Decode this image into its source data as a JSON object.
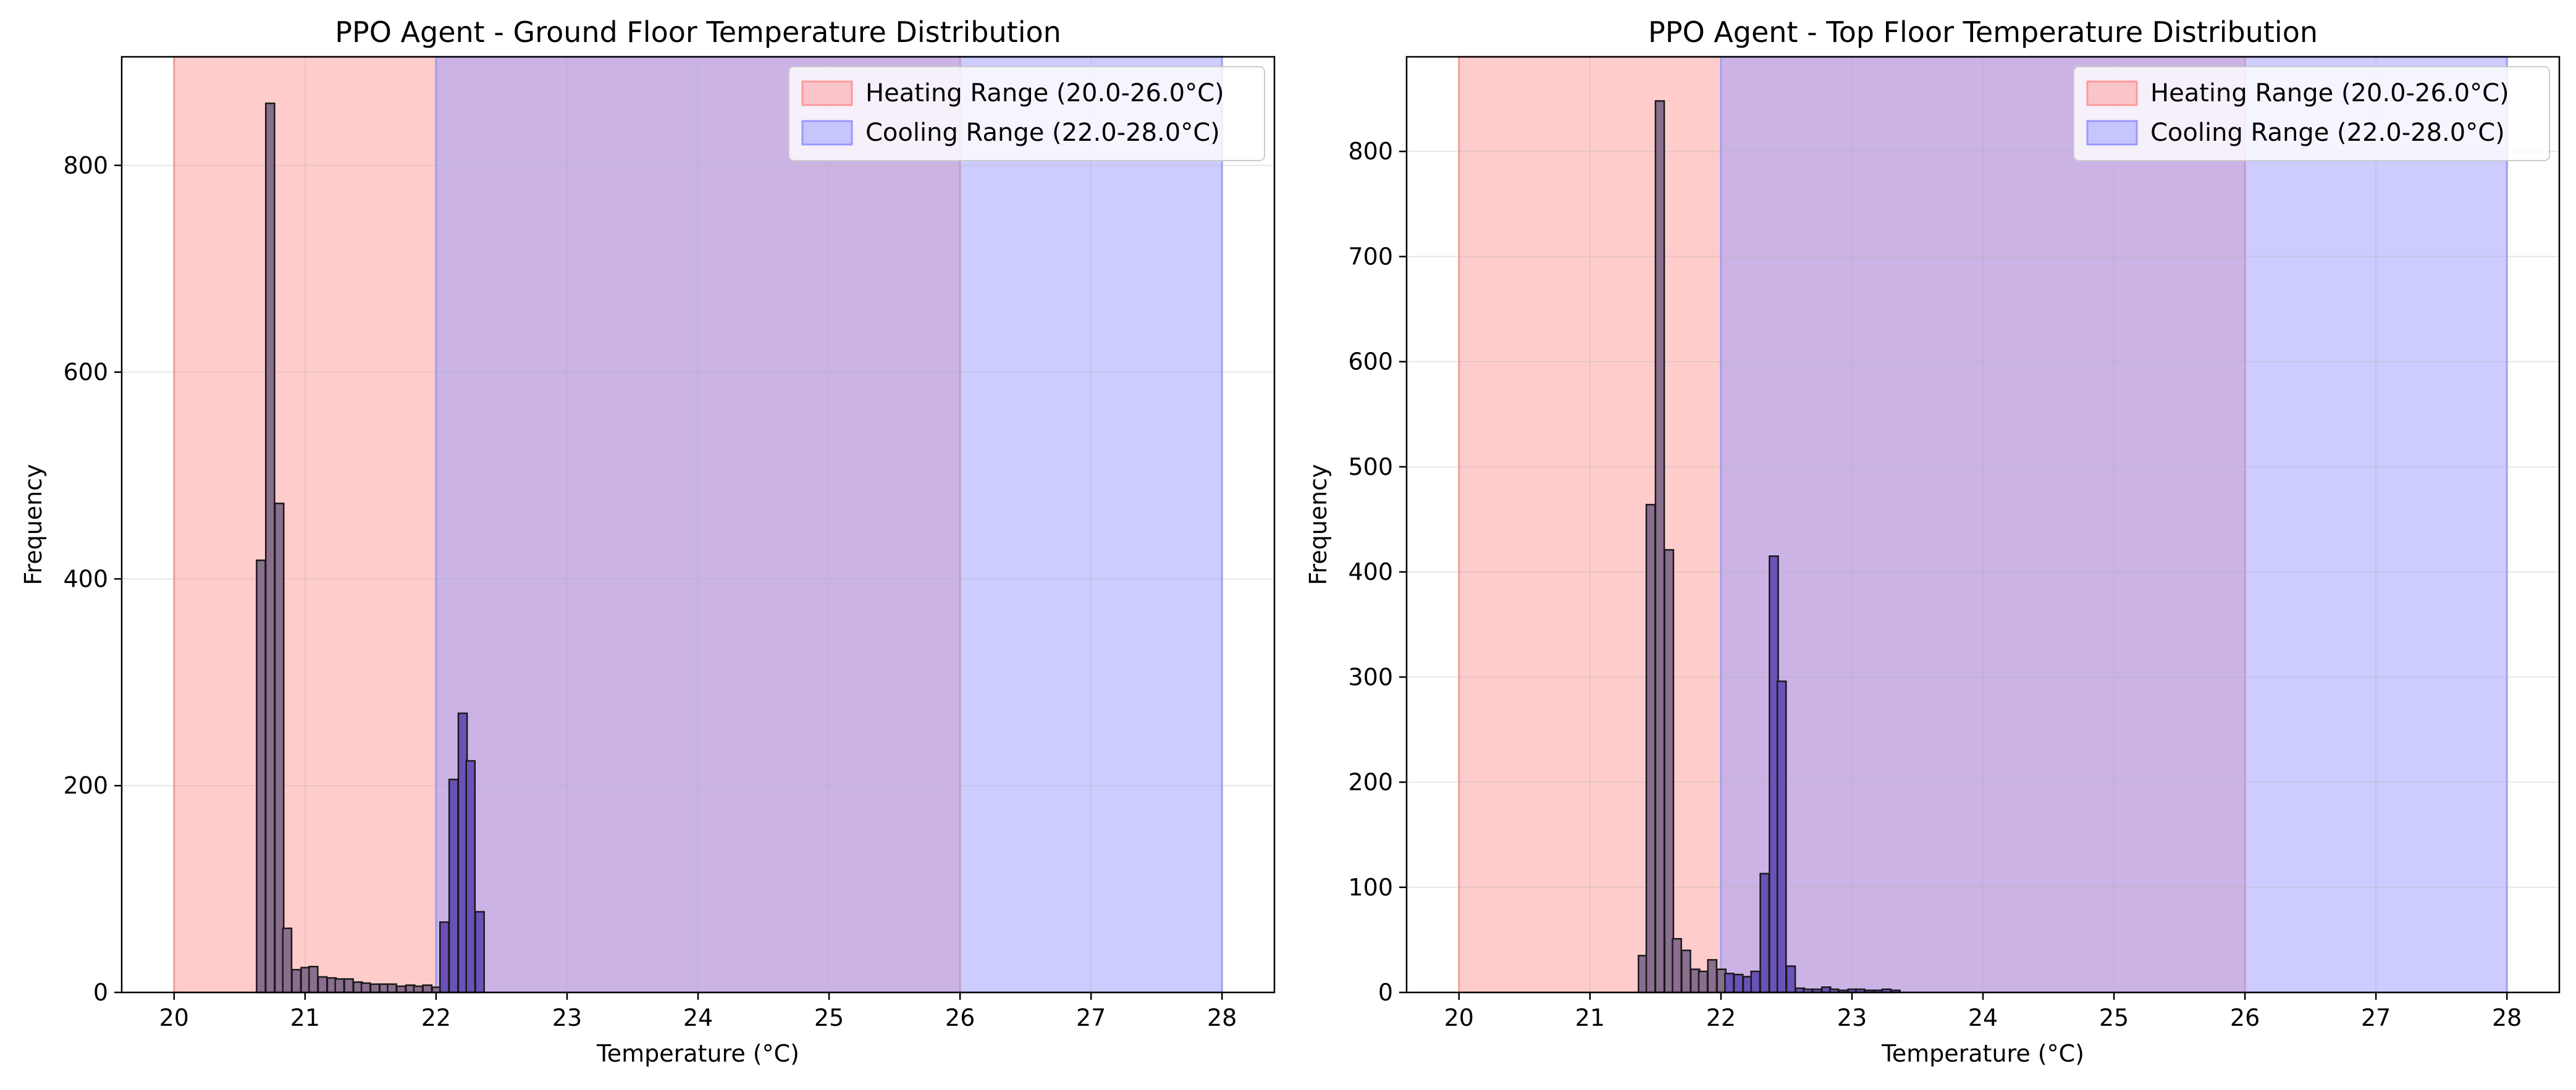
{
  "chart_data": [
    {
      "type": "histogram",
      "title": "PPO Agent - Ground Floor Temperature Distribution",
      "xlabel": "Temperature (°C)",
      "ylabel": "Frequency",
      "xlim": [
        19.6,
        28.4
      ],
      "ylim": [
        0,
        905
      ],
      "xticks": [
        20,
        21,
        22,
        23,
        24,
        25,
        26,
        27,
        28
      ],
      "yticks": [
        0,
        200,
        400,
        600,
        800
      ],
      "grid": true,
      "legend_position": "top-right",
      "shaded_ranges": [
        {
          "name": "Heating Range (20.0-26.0°C)",
          "start": 20.0,
          "end": 26.0,
          "color": "#ff9999"
        },
        {
          "name": "Cooling Range (22.0-28.0°C)",
          "start": 22.0,
          "end": 28.0,
          "color": "#9999ff"
        }
      ],
      "bin_width": 0.0667,
      "bins": [
        {
          "x": 20.63,
          "value": 418,
          "color": "#8a6e8e"
        },
        {
          "x": 20.7,
          "value": 860,
          "color": "#8a6e8e"
        },
        {
          "x": 20.77,
          "value": 473,
          "color": "#8a6e8e"
        },
        {
          "x": 20.83,
          "value": 62,
          "color": "#8a6e8e"
        },
        {
          "x": 20.9,
          "value": 22,
          "color": "#8a6e8e"
        },
        {
          "x": 20.97,
          "value": 24,
          "color": "#8a6e8e"
        },
        {
          "x": 21.03,
          "value": 25,
          "color": "#8a6e8e"
        },
        {
          "x": 21.1,
          "value": 15,
          "color": "#8a6e8e"
        },
        {
          "x": 21.17,
          "value": 14,
          "color": "#8a6e8e"
        },
        {
          "x": 21.23,
          "value": 13,
          "color": "#8a6e8e"
        },
        {
          "x": 21.3,
          "value": 13,
          "color": "#8a6e8e"
        },
        {
          "x": 21.37,
          "value": 10,
          "color": "#8a6e8e"
        },
        {
          "x": 21.43,
          "value": 9,
          "color": "#8a6e8e"
        },
        {
          "x": 21.5,
          "value": 8,
          "color": "#8a6e8e"
        },
        {
          "x": 21.57,
          "value": 8,
          "color": "#8a6e8e"
        },
        {
          "x": 21.63,
          "value": 8,
          "color": "#8a6e8e"
        },
        {
          "x": 21.7,
          "value": 6,
          "color": "#8a6e8e"
        },
        {
          "x": 21.77,
          "value": 7,
          "color": "#8a6e8e"
        },
        {
          "x": 21.83,
          "value": 6,
          "color": "#8a6e8e"
        },
        {
          "x": 21.9,
          "value": 7,
          "color": "#8a6e8e"
        },
        {
          "x": 21.97,
          "value": 5,
          "color": "#8a6e8e"
        },
        {
          "x": 22.03,
          "value": 68,
          "color": "#6a52b8"
        },
        {
          "x": 22.1,
          "value": 206,
          "color": "#6a52b8"
        },
        {
          "x": 22.17,
          "value": 270,
          "color": "#6a52b8"
        },
        {
          "x": 22.23,
          "value": 224,
          "color": "#6a52b8"
        },
        {
          "x": 22.3,
          "value": 78,
          "color": "#6a52b8"
        }
      ]
    },
    {
      "type": "histogram",
      "title": "PPO Agent - Top Floor Temperature Distribution",
      "xlabel": "Temperature (°C)",
      "ylabel": "Frequency",
      "xlim": [
        19.6,
        28.4
      ],
      "ylim": [
        0,
        890
      ],
      "xticks": [
        20,
        21,
        22,
        23,
        24,
        25,
        26,
        27,
        28
      ],
      "yticks": [
        0,
        100,
        200,
        300,
        400,
        500,
        600,
        700,
        800
      ],
      "grid": true,
      "legend_position": "top-right",
      "shaded_ranges": [
        {
          "name": "Heating Range (20.0-26.0°C)",
          "start": 20.0,
          "end": 26.0,
          "color": "#ff9999"
        },
        {
          "name": "Cooling Range (22.0-28.0°C)",
          "start": 22.0,
          "end": 28.0,
          "color": "#9999ff"
        }
      ],
      "bin_width": 0.0667,
      "bins": [
        {
          "x": 21.37,
          "value": 35,
          "color": "#8a6e8e"
        },
        {
          "x": 21.43,
          "value": 464,
          "color": "#8a6e8e"
        },
        {
          "x": 21.5,
          "value": 848,
          "color": "#8a6e8e"
        },
        {
          "x": 21.57,
          "value": 421,
          "color": "#8a6e8e"
        },
        {
          "x": 21.63,
          "value": 51,
          "color": "#8a6e8e"
        },
        {
          "x": 21.7,
          "value": 40,
          "color": "#8a6e8e"
        },
        {
          "x": 21.77,
          "value": 22,
          "color": "#8a6e8e"
        },
        {
          "x": 21.83,
          "value": 20,
          "color": "#8a6e8e"
        },
        {
          "x": 21.9,
          "value": 31,
          "color": "#8a6e8e"
        },
        {
          "x": 21.97,
          "value": 22,
          "color": "#8a6e8e"
        },
        {
          "x": 22.03,
          "value": 18,
          "color": "#6a52b8"
        },
        {
          "x": 22.1,
          "value": 17,
          "color": "#6a52b8"
        },
        {
          "x": 22.17,
          "value": 15,
          "color": "#6a52b8"
        },
        {
          "x": 22.23,
          "value": 20,
          "color": "#6a52b8"
        },
        {
          "x": 22.3,
          "value": 113,
          "color": "#6a52b8"
        },
        {
          "x": 22.37,
          "value": 415,
          "color": "#6a52b8"
        },
        {
          "x": 22.43,
          "value": 296,
          "color": "#6a52b8"
        },
        {
          "x": 22.5,
          "value": 25,
          "color": "#6a52b8"
        },
        {
          "x": 22.57,
          "value": 4,
          "color": "#6a52b8"
        },
        {
          "x": 22.63,
          "value": 3,
          "color": "#6a52b8"
        },
        {
          "x": 22.7,
          "value": 3,
          "color": "#6a52b8"
        },
        {
          "x": 22.77,
          "value": 5,
          "color": "#6a52b8"
        },
        {
          "x": 22.83,
          "value": 3,
          "color": "#6a52b8"
        },
        {
          "x": 22.9,
          "value": 2,
          "color": "#6a52b8"
        },
        {
          "x": 22.97,
          "value": 3,
          "color": "#6a52b8"
        },
        {
          "x": 23.03,
          "value": 3,
          "color": "#6a52b8"
        },
        {
          "x": 23.1,
          "value": 2,
          "color": "#6a52b8"
        },
        {
          "x": 23.17,
          "value": 2,
          "color": "#6a52b8"
        },
        {
          "x": 23.23,
          "value": 3,
          "color": "#6a52b8"
        },
        {
          "x": 23.3,
          "value": 2,
          "color": "#6a52b8"
        }
      ]
    }
  ]
}
